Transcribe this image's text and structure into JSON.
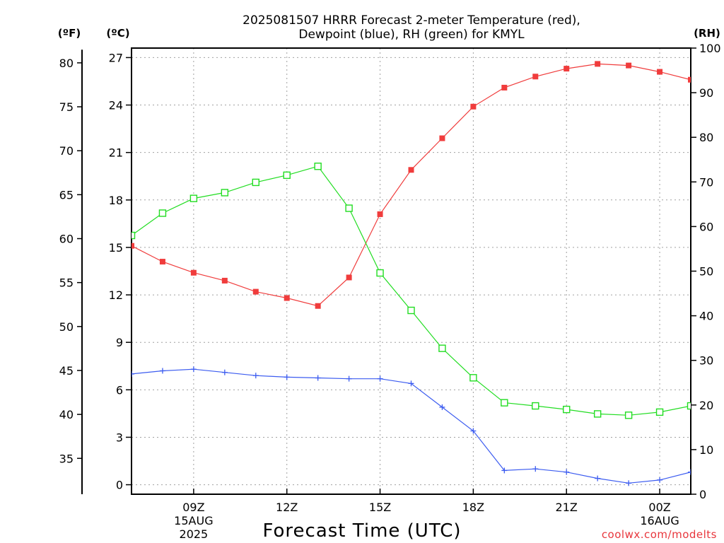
{
  "chart_data": {
    "type": "line",
    "title_lines": [
      "2025081507 HRRR Forecast 2-meter Temperature (red),",
      "Dewpoint (blue), RH (green) for KMYL"
    ],
    "xlabel": "Forecast Time (UTC)",
    "credit": "coolwx.com/modelts",
    "units": {
      "fahrenheit": "(ºF)",
      "celsius": "(ºC)",
      "rh": "(RH)"
    },
    "x": [
      7,
      8,
      9,
      10,
      11,
      12,
      13,
      14,
      15,
      16,
      17,
      18,
      19,
      20,
      21,
      22,
      23,
      24,
      25
    ],
    "xlim": [
      7,
      25
    ],
    "x_ticks": [
      {
        "x": 9,
        "lines": [
          "09Z",
          "15AUG",
          "2025"
        ]
      },
      {
        "x": 12,
        "lines": [
          "12Z"
        ]
      },
      {
        "x": 15,
        "lines": [
          "15Z"
        ]
      },
      {
        "x": 18,
        "lines": [
          "18Z"
        ]
      },
      {
        "x": 21,
        "lines": [
          "21Z"
        ]
      },
      {
        "x": 24,
        "lines": [
          "00Z",
          "16AUG"
        ]
      }
    ],
    "left_axis_c": {
      "ylim": [
        -0.6,
        27.6
      ],
      "ticks": [
        0,
        3,
        6,
        9,
        12,
        15,
        18,
        21,
        24,
        27
      ]
    },
    "left_axis_f": {
      "ticks": [
        35,
        40,
        45,
        50,
        55,
        60,
        65,
        70,
        75,
        80
      ]
    },
    "right_axis_rh": {
      "ylim": [
        0,
        100
      ],
      "ticks": [
        0,
        10,
        20,
        30,
        40,
        50,
        60,
        70,
        80,
        90,
        100
      ]
    },
    "series": [
      {
        "name": "Temperature",
        "axis": "celsius",
        "color": "#f03c3c",
        "marker": "filled-square",
        "values": [
          15.1,
          14.1,
          13.4,
          12.9,
          12.2,
          11.8,
          11.3,
          13.1,
          17.1,
          19.9,
          21.9,
          23.9,
          25.1,
          25.8,
          26.3,
          26.6,
          26.5,
          26.1,
          25.6
        ]
      },
      {
        "name": "Dewpoint",
        "axis": "celsius",
        "color": "#3c5cf0",
        "marker": "plus",
        "values": [
          7.0,
          7.2,
          7.3,
          7.1,
          6.9,
          6.8,
          6.75,
          6.7,
          6.7,
          6.4,
          4.9,
          3.4,
          0.9,
          1.0,
          0.8,
          0.4,
          0.1,
          0.3,
          0.8
        ]
      },
      {
        "name": "RH",
        "axis": "rh",
        "color": "#22dd22",
        "marker": "open-square",
        "values": [
          58,
          63,
          66.3,
          67.6,
          69.9,
          71.5,
          73.5,
          64.1,
          49.6,
          41.2,
          32.7,
          26.1,
          20.5,
          19.8,
          19.0,
          18.0,
          17.7,
          18.4,
          19.8
        ]
      }
    ]
  }
}
